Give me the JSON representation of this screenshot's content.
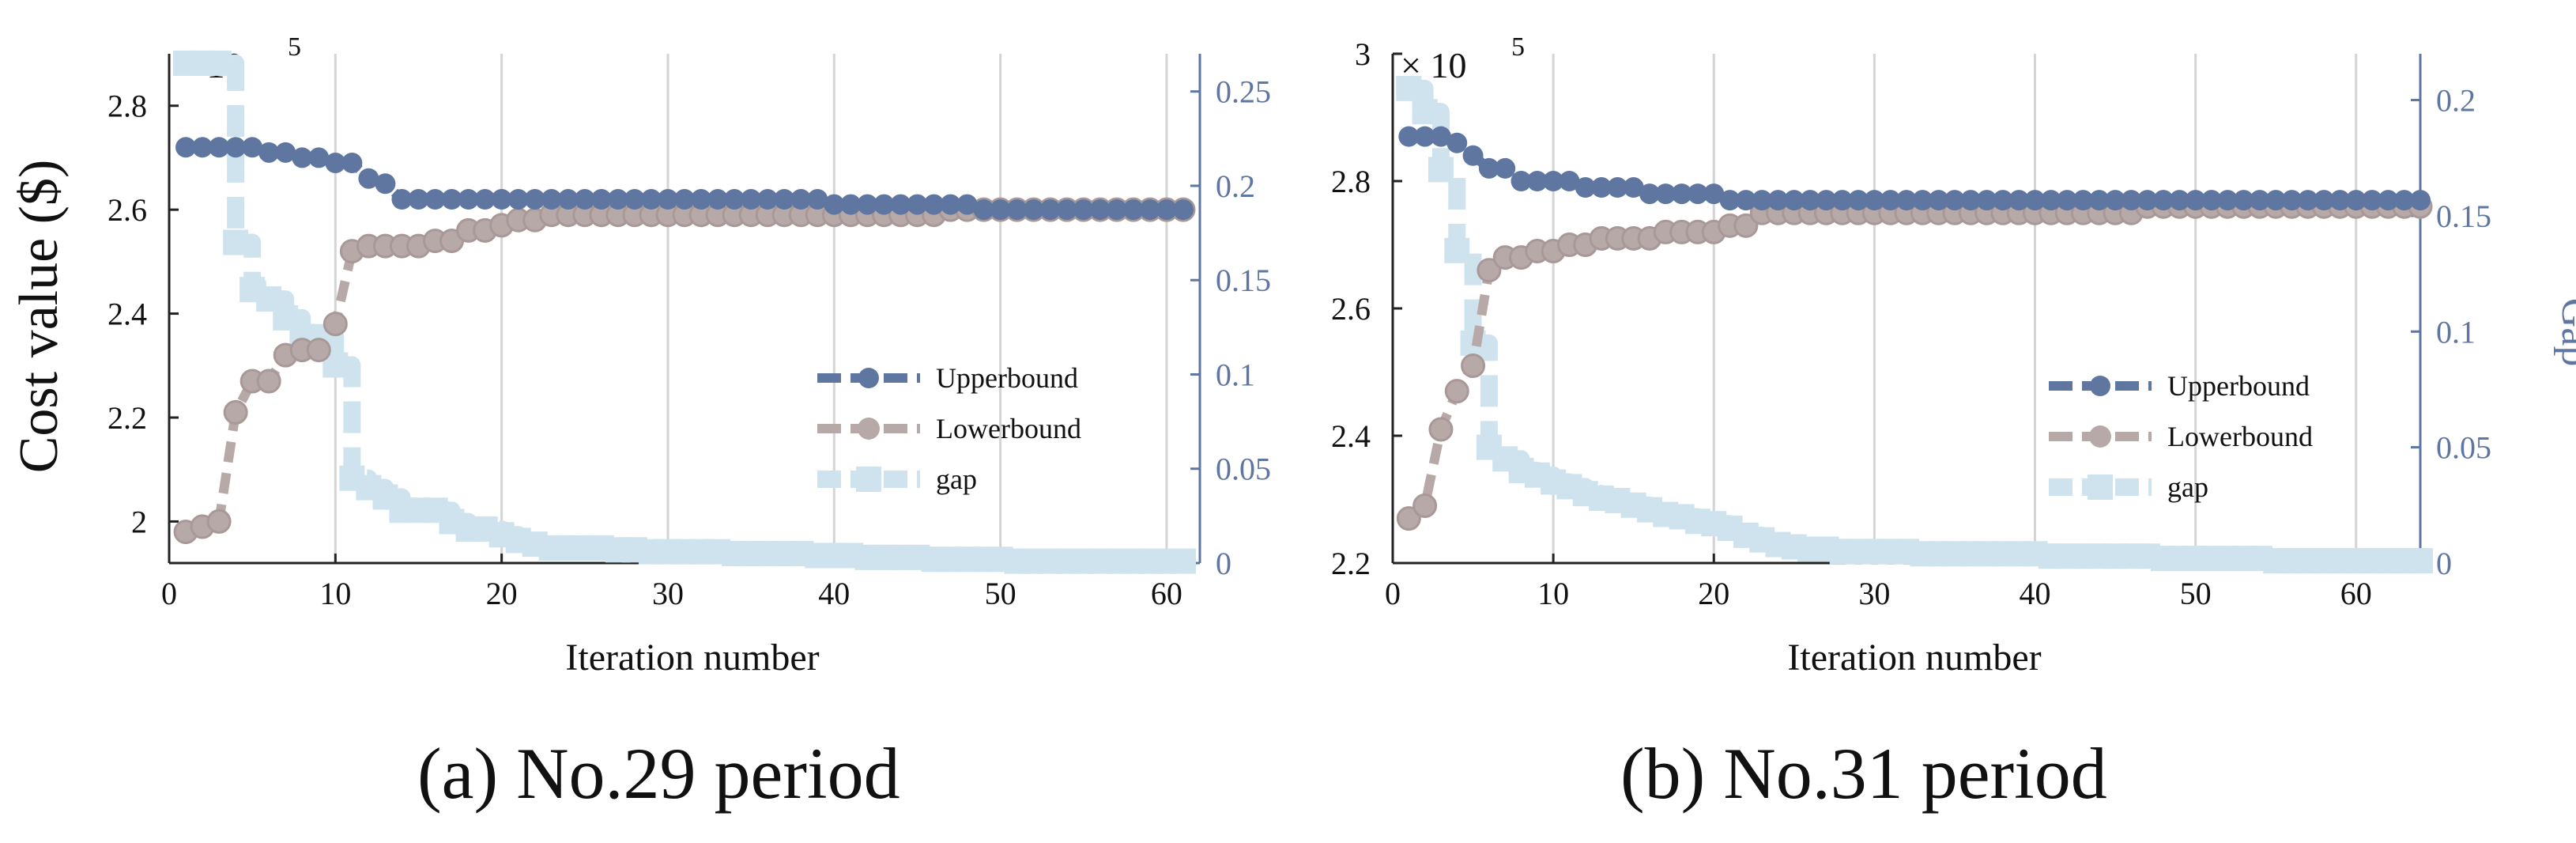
{
  "colors": {
    "upper": "#5e76a0",
    "lower": "#b8a9a9",
    "gap": "#cfe3ee",
    "right_axis": "#5e76a0",
    "grid": "#d4d4d4",
    "text": "#111111"
  },
  "chart_data": [
    {
      "type": "line",
      "caption": "(a) No.29 period",
      "xlabel": "Iteration number",
      "ylabel": "Cost value ($)",
      "y2label": "",
      "exponent_label": "× 10",
      "exponent_power": "5",
      "xlim": [
        0,
        62
      ],
      "ylim": [
        1.92,
        2.9
      ],
      "y2lim": [
        0,
        0.27
      ],
      "xticks": [
        0,
        10,
        20,
        30,
        40,
        50,
        60
      ],
      "yticks": [
        2.0,
        2.2,
        2.4,
        2.6,
        2.8
      ],
      "ytick_labels": [
        "2",
        "2.2",
        "2.4",
        "2.6",
        "2.8"
      ],
      "y2ticks": [
        0,
        0.05,
        0.1,
        0.15,
        0.2,
        0.25
      ],
      "y2tick_labels": [
        "0",
        "0.05",
        "0.1",
        "0.15",
        "0.2",
        "0.25"
      ],
      "grid": true,
      "legend_position": "middle-right",
      "series": [
        {
          "name": "Upperbound",
          "axis": "left",
          "x": [
            1,
            2,
            3,
            4,
            5,
            6,
            7,
            8,
            9,
            10,
            11,
            12,
            13,
            14,
            15,
            16,
            17,
            18,
            19,
            20,
            21,
            22,
            23,
            24,
            25,
            26,
            27,
            28,
            29,
            30,
            31,
            32,
            33,
            34,
            35,
            36,
            37,
            38,
            39,
            40,
            41,
            42,
            43,
            44,
            45,
            46,
            47,
            48,
            49,
            50,
            51,
            52,
            53,
            54,
            55,
            56,
            57,
            58,
            59,
            60,
            61
          ],
          "y": [
            2.72,
            2.72,
            2.72,
            2.72,
            2.72,
            2.71,
            2.71,
            2.7,
            2.7,
            2.69,
            2.69,
            2.66,
            2.65,
            2.62,
            2.62,
            2.62,
            2.62,
            2.62,
            2.62,
            2.62,
            2.62,
            2.62,
            2.62,
            2.62,
            2.62,
            2.62,
            2.62,
            2.62,
            2.62,
            2.62,
            2.62,
            2.62,
            2.62,
            2.62,
            2.62,
            2.62,
            2.62,
            2.62,
            2.62,
            2.61,
            2.61,
            2.61,
            2.61,
            2.61,
            2.61,
            2.61,
            2.61,
            2.61,
            2.6,
            2.6,
            2.6,
            2.6,
            2.6,
            2.6,
            2.6,
            2.6,
            2.6,
            2.6,
            2.6,
            2.6,
            2.6
          ]
        },
        {
          "name": "Lowerbound",
          "axis": "left",
          "x": [
            1,
            2,
            3,
            4,
            5,
            6,
            7,
            8,
            9,
            10,
            11,
            12,
            13,
            14,
            15,
            16,
            17,
            18,
            19,
            20,
            21,
            22,
            23,
            24,
            25,
            26,
            27,
            28,
            29,
            30,
            31,
            32,
            33,
            34,
            35,
            36,
            37,
            38,
            39,
            40,
            41,
            42,
            43,
            44,
            45,
            46,
            47,
            48,
            49,
            50,
            51,
            52,
            53,
            54,
            55,
            56,
            57,
            58,
            59,
            60,
            61
          ],
          "y": [
            1.98,
            1.99,
            2.0,
            2.21,
            2.27,
            2.27,
            2.32,
            2.33,
            2.33,
            2.38,
            2.52,
            2.53,
            2.53,
            2.53,
            2.53,
            2.54,
            2.54,
            2.56,
            2.56,
            2.57,
            2.58,
            2.58,
            2.59,
            2.59,
            2.59,
            2.59,
            2.59,
            2.59,
            2.59,
            2.59,
            2.59,
            2.59,
            2.59,
            2.59,
            2.59,
            2.59,
            2.59,
            2.59,
            2.59,
            2.59,
            2.59,
            2.59,
            2.59,
            2.59,
            2.59,
            2.59,
            2.6,
            2.6,
            2.6,
            2.6,
            2.6,
            2.6,
            2.6,
            2.6,
            2.6,
            2.6,
            2.6,
            2.6,
            2.6,
            2.6,
            2.6
          ]
        },
        {
          "name": "gap",
          "axis": "right",
          "x": [
            1,
            2,
            3,
            4,
            5,
            6,
            7,
            8,
            9,
            10,
            11,
            12,
            13,
            14,
            15,
            16,
            17,
            18,
            19,
            20,
            21,
            22,
            23,
            24,
            25,
            26,
            27,
            28,
            29,
            30,
            31,
            32,
            33,
            34,
            35,
            36,
            37,
            38,
            39,
            40,
            41,
            42,
            43,
            44,
            45,
            46,
            47,
            48,
            49,
            50,
            51,
            52,
            53,
            54,
            55,
            56,
            57,
            58,
            59,
            60,
            61
          ],
          "y": [
            0.265,
            0.265,
            0.265,
            0.17,
            0.145,
            0.14,
            0.13,
            0.12,
            0.12,
            0.105,
            0.045,
            0.04,
            0.035,
            0.028,
            0.028,
            0.028,
            0.022,
            0.018,
            0.018,
            0.015,
            0.012,
            0.01,
            0.008,
            0.008,
            0.008,
            0.008,
            0.007,
            0.007,
            0.006,
            0.006,
            0.006,
            0.006,
            0.006,
            0.005,
            0.005,
            0.005,
            0.005,
            0.005,
            0.004,
            0.004,
            0.004,
            0.003,
            0.003,
            0.003,
            0.003,
            0.002,
            0.002,
            0.002,
            0.002,
            0.002,
            0.001,
            0.001,
            0.001,
            0.001,
            0.001,
            0.001,
            0.001,
            0.001,
            0.001,
            0.001,
            0.001
          ]
        }
      ]
    },
    {
      "type": "line",
      "caption": "(b) No.31 period",
      "xlabel": "Iteration number",
      "ylabel": "",
      "y2label": "Gap",
      "exponent_label": "× 10",
      "exponent_power": "5",
      "xlim": [
        0,
        64
      ],
      "ylim": [
        2.2,
        3.0
      ],
      "y2lim": [
        0,
        0.22
      ],
      "xticks": [
        0,
        10,
        20,
        30,
        40,
        50,
        60
      ],
      "yticks": [
        2.2,
        2.4,
        2.6,
        2.8,
        3.0
      ],
      "ytick_labels": [
        "2.2",
        "2.4",
        "2.6",
        "2.8",
        "3"
      ],
      "y2ticks": [
        0,
        0.05,
        0.1,
        0.15,
        0.2
      ],
      "y2tick_labels": [
        "0",
        "0.05",
        "0.1",
        "0.15",
        "0.2"
      ],
      "grid": true,
      "legend_position": "lower-right",
      "series": [
        {
          "name": "Upperbound",
          "axis": "left",
          "x": [
            1,
            2,
            3,
            4,
            5,
            6,
            7,
            8,
            9,
            10,
            11,
            12,
            13,
            14,
            15,
            16,
            17,
            18,
            19,
            20,
            21,
            22,
            23,
            24,
            25,
            26,
            27,
            28,
            29,
            30,
            31,
            32,
            33,
            34,
            35,
            36,
            37,
            38,
            39,
            40,
            41,
            42,
            43,
            44,
            45,
            46,
            47,
            48,
            49,
            50,
            51,
            52,
            53,
            54,
            55,
            56,
            57,
            58,
            59,
            60,
            61,
            62,
            63,
            64
          ],
          "y": [
            2.87,
            2.87,
            2.87,
            2.86,
            2.84,
            2.82,
            2.82,
            2.8,
            2.8,
            2.8,
            2.8,
            2.79,
            2.79,
            2.79,
            2.79,
            2.78,
            2.78,
            2.78,
            2.78,
            2.78,
            2.77,
            2.77,
            2.77,
            2.77,
            2.77,
            2.77,
            2.77,
            2.77,
            2.77,
            2.77,
            2.77,
            2.77,
            2.77,
            2.77,
            2.77,
            2.77,
            2.77,
            2.77,
            2.77,
            2.77,
            2.77,
            2.77,
            2.77,
            2.77,
            2.77,
            2.77,
            2.77,
            2.77,
            2.77,
            2.77,
            2.77,
            2.77,
            2.77,
            2.77,
            2.77,
            2.77,
            2.77,
            2.77,
            2.77,
            2.77,
            2.77,
            2.77,
            2.77,
            2.77
          ]
        },
        {
          "name": "Lowerbound",
          "axis": "left",
          "x": [
            1,
            2,
            3,
            4,
            5,
            6,
            7,
            8,
            9,
            10,
            11,
            12,
            13,
            14,
            15,
            16,
            17,
            18,
            19,
            20,
            21,
            22,
            23,
            24,
            25,
            26,
            27,
            28,
            29,
            30,
            31,
            32,
            33,
            34,
            35,
            36,
            37,
            38,
            39,
            40,
            41,
            42,
            43,
            44,
            45,
            46,
            47,
            48,
            49,
            50,
            51,
            52,
            53,
            54,
            55,
            56,
            57,
            58,
            59,
            60,
            61,
            62,
            63,
            64
          ],
          "y": [
            2.27,
            2.29,
            2.41,
            2.47,
            2.51,
            2.66,
            2.68,
            2.68,
            2.69,
            2.69,
            2.7,
            2.7,
            2.71,
            2.71,
            2.71,
            2.71,
            2.72,
            2.72,
            2.72,
            2.72,
            2.73,
            2.73,
            2.75,
            2.75,
            2.75,
            2.75,
            2.75,
            2.75,
            2.75,
            2.75,
            2.75,
            2.75,
            2.75,
            2.75,
            2.75,
            2.75,
            2.75,
            2.75,
            2.75,
            2.75,
            2.75,
            2.75,
            2.75,
            2.75,
            2.75,
            2.75,
            2.76,
            2.76,
            2.76,
            2.76,
            2.76,
            2.76,
            2.76,
            2.76,
            2.76,
            2.76,
            2.76,
            2.76,
            2.76,
            2.76,
            2.76,
            2.76,
            2.76,
            2.76
          ]
        },
        {
          "name": "gap",
          "axis": "right",
          "x": [
            1,
            2,
            3,
            4,
            5,
            6,
            7,
            8,
            9,
            10,
            11,
            12,
            13,
            14,
            15,
            16,
            17,
            18,
            19,
            20,
            21,
            22,
            23,
            24,
            25,
            26,
            27,
            28,
            29,
            30,
            31,
            32,
            33,
            34,
            35,
            36,
            37,
            38,
            39,
            40,
            41,
            42,
            43,
            44,
            45,
            46,
            47,
            48,
            49,
            50,
            51,
            52,
            53,
            54,
            55,
            56,
            57,
            58,
            59,
            60,
            61,
            62,
            63,
            64
          ],
          "y": [
            0.205,
            0.195,
            0.17,
            0.135,
            0.095,
            0.05,
            0.045,
            0.04,
            0.038,
            0.035,
            0.033,
            0.03,
            0.028,
            0.027,
            0.025,
            0.023,
            0.021,
            0.02,
            0.018,
            0.017,
            0.015,
            0.012,
            0.01,
            0.008,
            0.007,
            0.006,
            0.006,
            0.005,
            0.005,
            0.005,
            0.005,
            0.005,
            0.004,
            0.004,
            0.004,
            0.004,
            0.004,
            0.004,
            0.004,
            0.004,
            0.003,
            0.003,
            0.003,
            0.003,
            0.003,
            0.003,
            0.003,
            0.002,
            0.002,
            0.002,
            0.002,
            0.002,
            0.002,
            0.002,
            0.001,
            0.001,
            0.001,
            0.001,
            0.001,
            0.001,
            0.001,
            0.001,
            0.001,
            0.001
          ]
        }
      ]
    }
  ]
}
